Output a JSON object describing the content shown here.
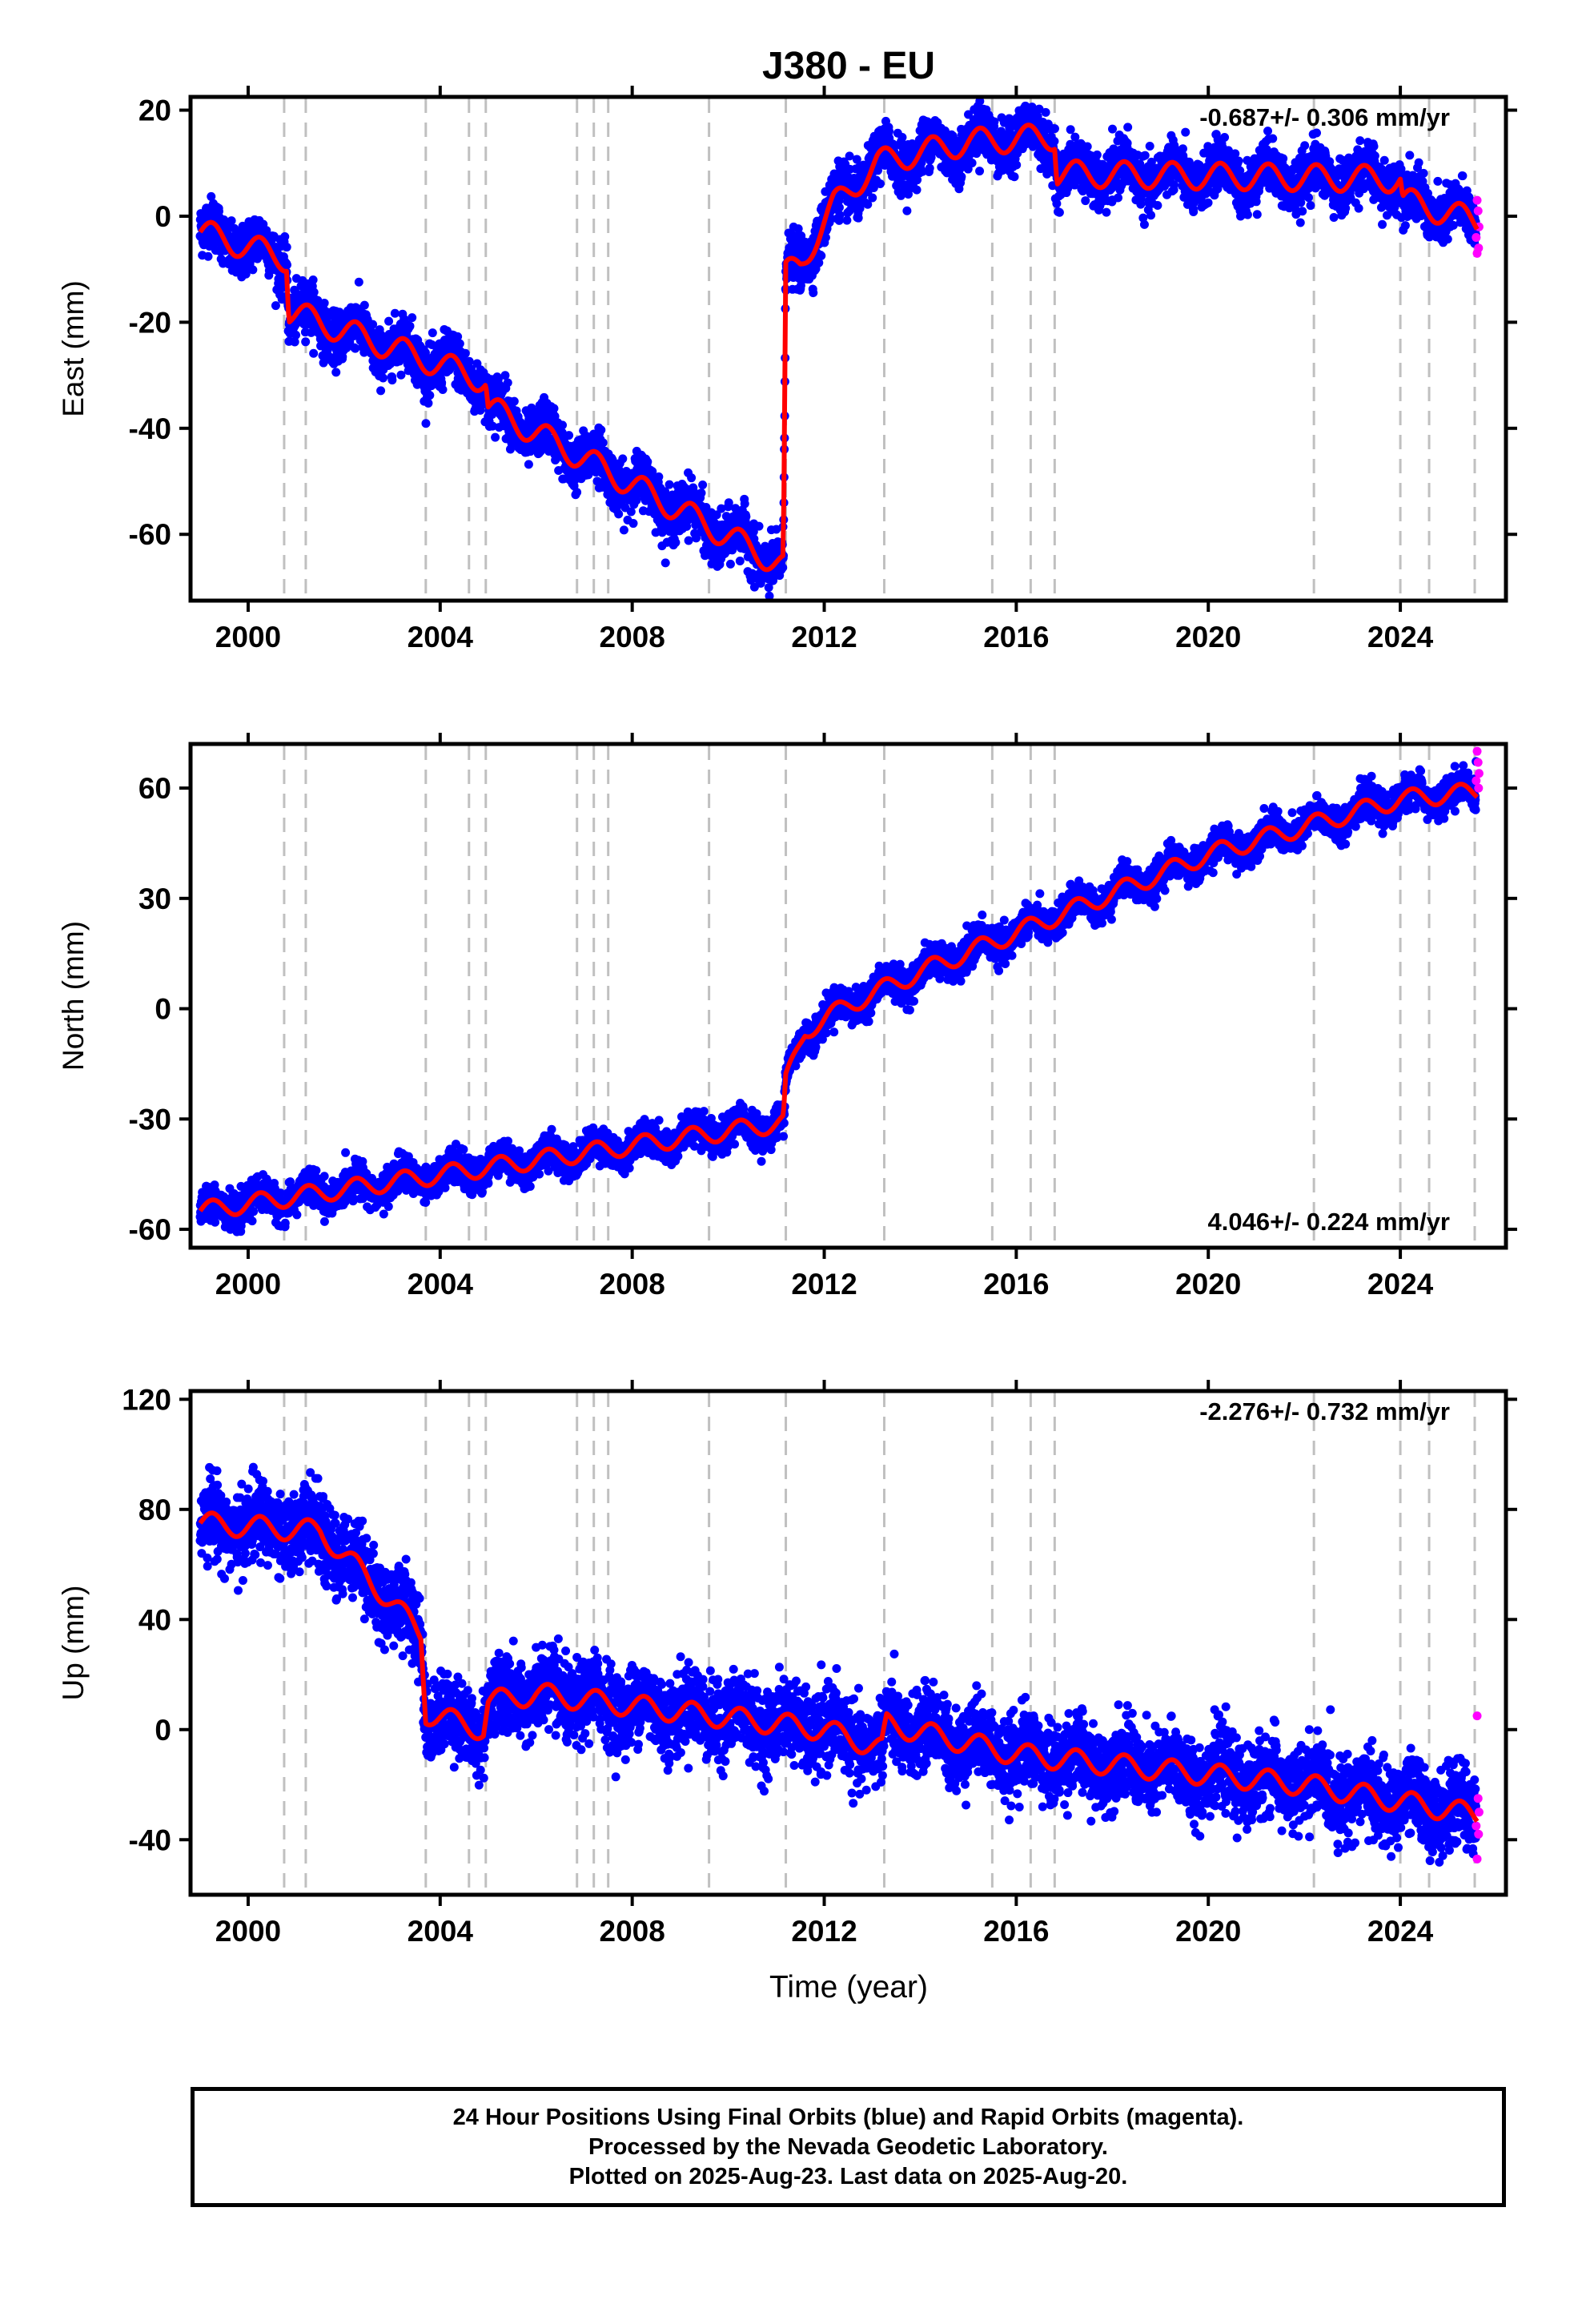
{
  "title": "J380 - EU",
  "xlabel": "Time (year)",
  "colors": {
    "final_orbits": "#0000ff",
    "rapid_orbits": "#ff00ff",
    "model": "#ff0000",
    "event_lines": "#c0c0c0"
  },
  "chart_data": [
    {
      "type": "scatter",
      "ylabel": "East (mm)",
      "rate_label": "-0.687+/- 0.306 mm/yr",
      "rate_position": "top-right",
      "xlim": [
        1998.8,
        2026.2
      ],
      "ylim": [
        -72.5,
        22.5
      ],
      "xticks": [
        2000,
        2004,
        2008,
        2012,
        2016,
        2020,
        2024
      ],
      "yticks": [
        20,
        0,
        -20,
        -40,
        -60
      ],
      "event_lines": [
        2000.75,
        2001.2,
        2003.7,
        2004.6,
        2004.95,
        2006.85,
        2007.2,
        2007.5,
        2009.6,
        2011.2,
        2013.25,
        2015.5,
        2016.3,
        2016.8,
        2022.2,
        2024.0,
        2024.6,
        2025.55
      ],
      "trend": [
        {
          "x": 1999.0,
          "y": -3
        },
        {
          "x": 2000.8,
          "y": -8
        },
        {
          "x": 2000.85,
          "y": -18
        },
        {
          "x": 2004.95,
          "y": -31
        },
        {
          "x": 2005.0,
          "y": -36
        },
        {
          "x": 2011.15,
          "y": -66
        },
        {
          "x": 2011.2,
          "y": -11
        },
        {
          "x": 2011.5,
          "y": -9
        },
        {
          "x": 2012.2,
          "y": 2
        },
        {
          "x": 2013.1,
          "y": 10
        },
        {
          "x": 2013.5,
          "y": 11
        },
        {
          "x": 2015.0,
          "y": 14
        },
        {
          "x": 2016.8,
          "y": 15
        },
        {
          "x": 2016.85,
          "y": 8
        },
        {
          "x": 2024.0,
          "y": 7
        },
        {
          "x": 2024.05,
          "y": 3
        },
        {
          "x": 2025.6,
          "y": -1
        }
      ],
      "seasonal_amplitude": 2.5,
      "scatter_sd": 2.4,
      "rapid_points": [
        {
          "x": 2025.6,
          "y": 3
        },
        {
          "x": 2025.62,
          "y": 1
        },
        {
          "x": 2025.64,
          "y": -2
        },
        {
          "x": 2025.58,
          "y": -4
        },
        {
          "x": 2025.63,
          "y": -6
        },
        {
          "x": 2025.6,
          "y": -7
        }
      ]
    },
    {
      "type": "scatter",
      "ylabel": "North (mm)",
      "rate_label": "4.046+/- 0.224 mm/yr",
      "rate_position": "bottom-right",
      "xlim": [
        1998.8,
        2026.2
      ],
      "ylim": [
        -65,
        72
      ],
      "xticks": [
        2000,
        2004,
        2008,
        2012,
        2016,
        2020,
        2024
      ],
      "yticks": [
        60,
        30,
        0,
        -30,
        -60
      ],
      "event_lines": [
        2000.75,
        2001.2,
        2003.7,
        2004.6,
        2004.95,
        2006.85,
        2007.2,
        2007.5,
        2009.6,
        2011.2,
        2013.25,
        2015.5,
        2016.3,
        2016.8,
        2022.2,
        2024.0,
        2024.6,
        2025.55
      ],
      "trend": [
        {
          "x": 1999.0,
          "y": -55
        },
        {
          "x": 2011.15,
          "y": -31
        },
        {
          "x": 2011.2,
          "y": -20
        },
        {
          "x": 2011.6,
          "y": -6
        },
        {
          "x": 2012.5,
          "y": 1
        },
        {
          "x": 2014.0,
          "y": 10
        },
        {
          "x": 2020.0,
          "y": 42
        },
        {
          "x": 2024.0,
          "y": 57
        },
        {
          "x": 2025.6,
          "y": 59
        }
      ],
      "seasonal_amplitude": 2.5,
      "scatter_sd": 2.2,
      "rapid_points": [
        {
          "x": 2025.6,
          "y": 70
        },
        {
          "x": 2025.62,
          "y": 67
        },
        {
          "x": 2025.64,
          "y": 64
        },
        {
          "x": 2025.58,
          "y": 62
        },
        {
          "x": 2025.63,
          "y": 60
        }
      ]
    },
    {
      "type": "scatter",
      "ylabel": "Up (mm)",
      "rate_label": "-2.276+/- 0.732 mm/yr",
      "rate_position": "top-right",
      "xlim": [
        1998.8,
        2026.2
      ],
      "ylim": [
        -60,
        123
      ],
      "xticks": [
        2000,
        2004,
        2008,
        2012,
        2016,
        2020,
        2024
      ],
      "yticks": [
        120,
        80,
        40,
        0,
        -40
      ],
      "event_lines": [
        2000.75,
        2001.2,
        2003.7,
        2004.6,
        2004.95,
        2006.85,
        2007.2,
        2007.5,
        2009.6,
        2011.2,
        2013.25,
        2015.5,
        2016.3,
        2016.8,
        2022.2,
        2024.0,
        2024.6,
        2025.55
      ],
      "trend": [
        {
          "x": 1999.0,
          "y": 75
        },
        {
          "x": 2001.5,
          "y": 72
        },
        {
          "x": 2002.5,
          "y": 55
        },
        {
          "x": 2003.6,
          "y": 35
        },
        {
          "x": 2003.7,
          "y": 6
        },
        {
          "x": 2004.9,
          "y": 0
        },
        {
          "x": 2005.0,
          "y": 10
        },
        {
          "x": 2006.0,
          "y": 13
        },
        {
          "x": 2012.0,
          "y": 0
        },
        {
          "x": 2013.2,
          "y": -7
        },
        {
          "x": 2013.3,
          "y": 2
        },
        {
          "x": 2016.0,
          "y": -9
        },
        {
          "x": 2022.0,
          "y": -20
        },
        {
          "x": 2025.6,
          "y": -31
        }
      ],
      "seasonal_amplitude": 4,
      "scatter_sd": 7,
      "rapid_points": [
        {
          "x": 2025.6,
          "y": 5
        },
        {
          "x": 2025.62,
          "y": -25
        },
        {
          "x": 2025.64,
          "y": -30
        },
        {
          "x": 2025.58,
          "y": -35
        },
        {
          "x": 2025.63,
          "y": -38
        },
        {
          "x": 2025.6,
          "y": -47
        }
      ]
    }
  ],
  "footer": {
    "line1": "24 Hour Positions Using Final Orbits (blue) and Rapid Orbits (magenta).",
    "line2": "Processed by the Nevada Geodetic Laboratory.",
    "line3": "Plotted on 2025-Aug-23. Last data on 2025-Aug-20."
  }
}
